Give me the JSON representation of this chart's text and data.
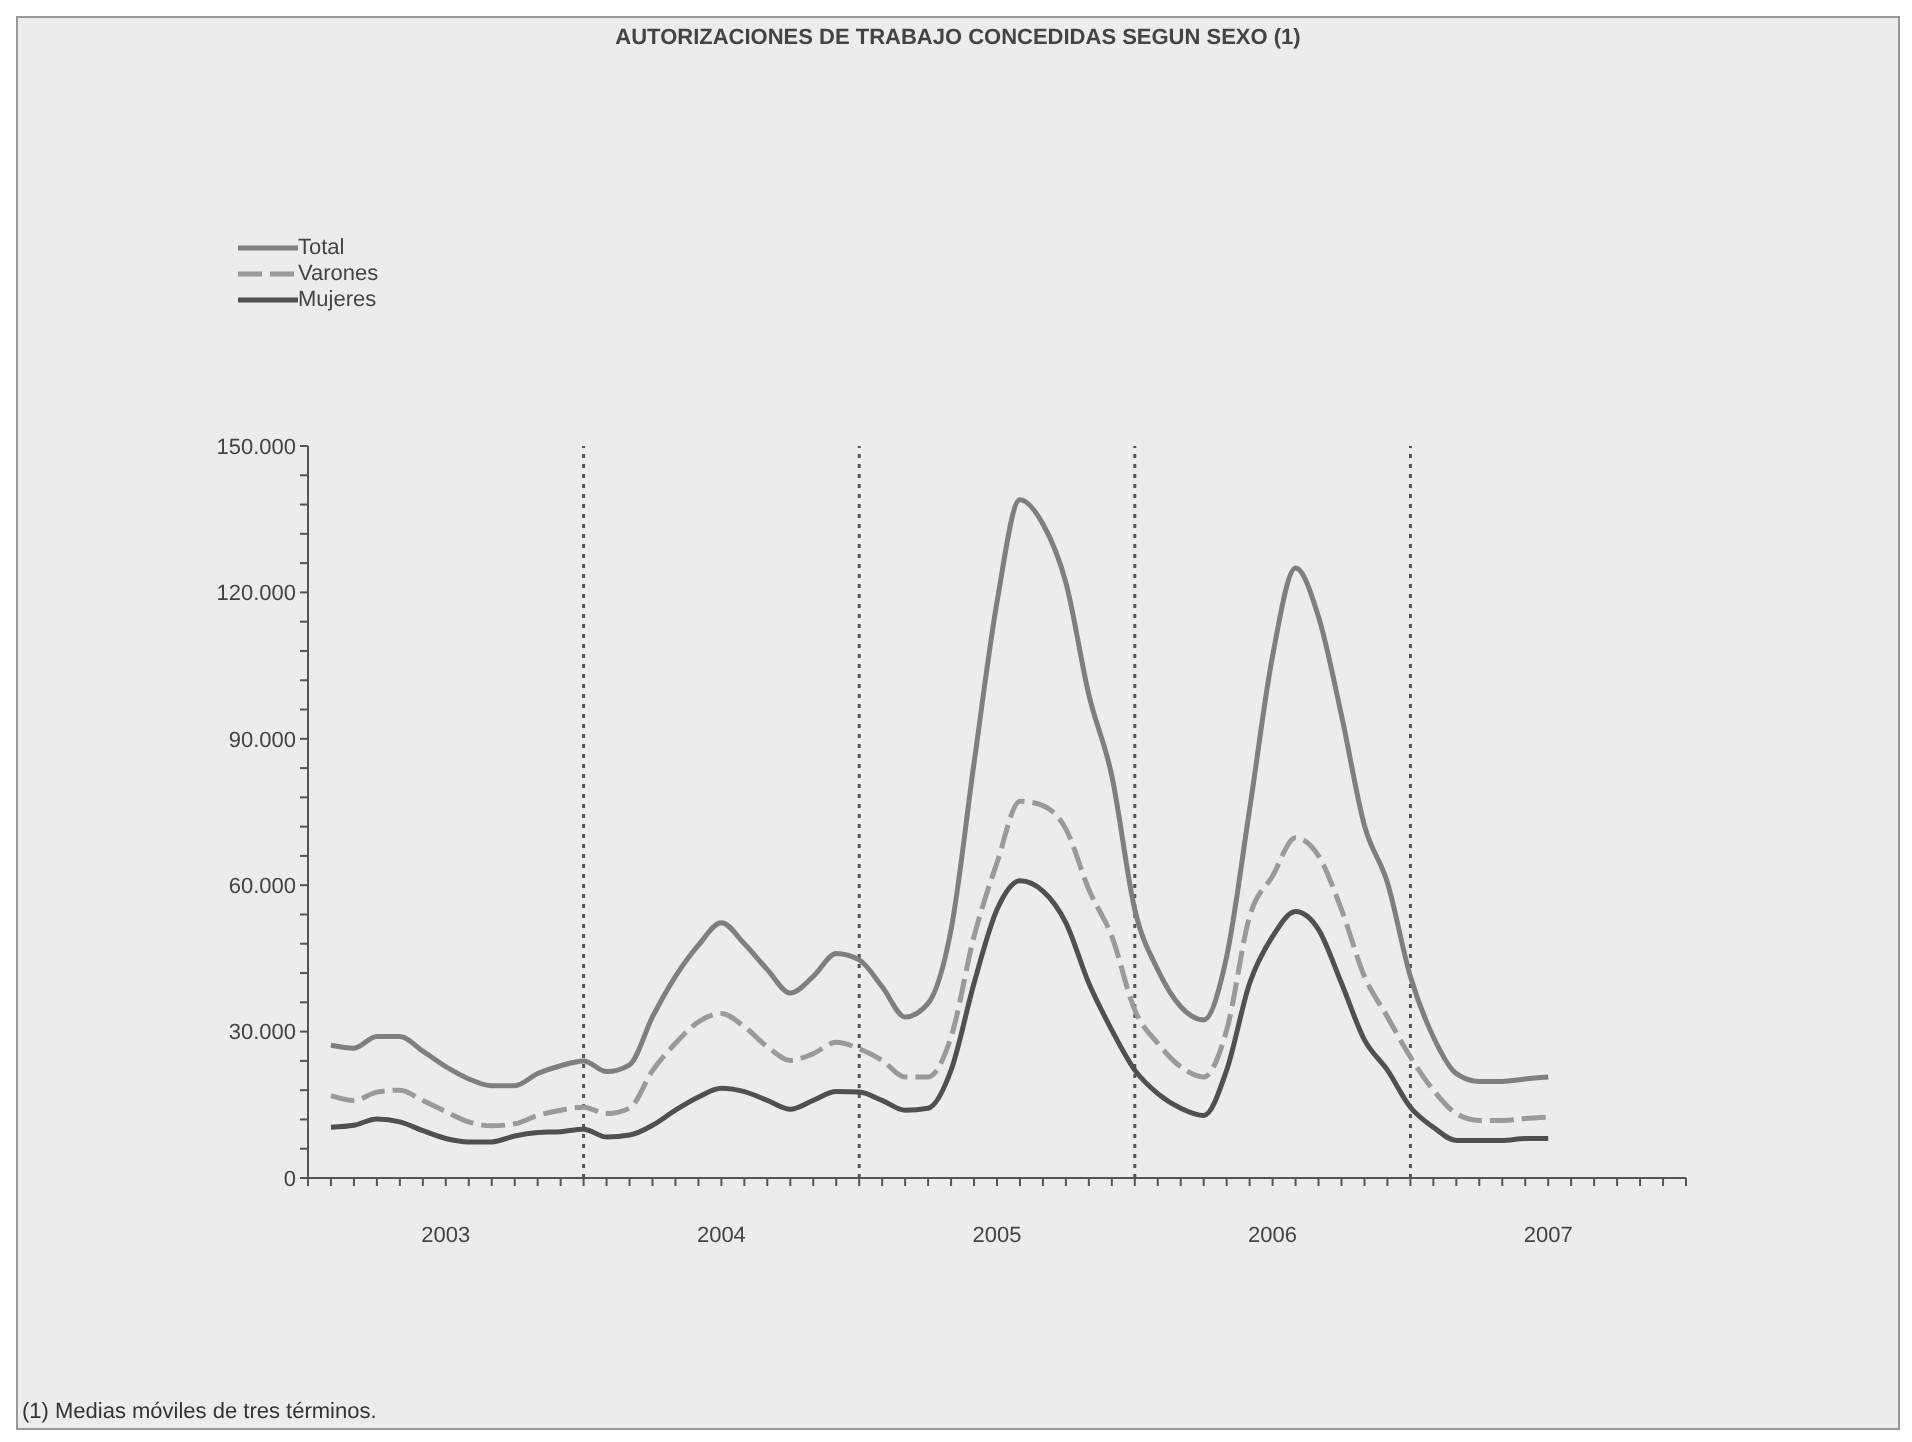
{
  "chart_data": {
    "type": "line",
    "title": "AUTORIZACIONES DE TRABAJO CONCEDIDAS SEGUN SEXO (1)",
    "annotations": [
      "(1) Medias móviles de tres términos."
    ],
    "x": [
      "2003-02",
      "2003-03",
      "2003-04",
      "2003-05",
      "2003-06",
      "2003-07",
      "2003-08",
      "2003-09",
      "2003-10",
      "2003-11",
      "2003-12",
      "2004-01",
      "2004-02",
      "2004-03",
      "2004-04",
      "2004-05",
      "2004-06",
      "2004-07",
      "2004-08",
      "2004-09",
      "2004-10",
      "2004-11",
      "2004-12",
      "2005-01",
      "2005-02",
      "2005-03",
      "2005-04",
      "2005-05",
      "2005-06",
      "2005-07",
      "2005-08",
      "2005-09",
      "2005-10",
      "2005-11",
      "2005-12",
      "2006-01",
      "2006-02",
      "2006-03",
      "2006-04",
      "2006-05",
      "2006-06",
      "2006-07",
      "2006-08",
      "2006-09",
      "2006-10",
      "2006-11",
      "2006-12",
      "2007-01",
      "2007-02",
      "2007-03",
      "2007-04",
      "2007-05",
      "2007-06",
      "2007-07"
    ],
    "series": [
      {
        "name": "Total",
        "color": "#7f7f7f",
        "values": [
          27200,
          26600,
          29000,
          29000,
          26000,
          22800,
          20300,
          18900,
          18900,
          21400,
          23000,
          24000,
          21800,
          23200,
          33000,
          41300,
          47700,
          52300,
          48000,
          42700,
          37900,
          41300,
          46000,
          44700,
          39200,
          33000,
          35800,
          50900,
          85000,
          118000,
          139000,
          134000,
          122000,
          99000,
          82400,
          55000,
          42700,
          35100,
          32400,
          45400,
          75600,
          107000,
          125000,
          115000,
          94800,
          72200,
          60500,
          41300,
          28900,
          21400,
          19800,
          19800,
          20300,
          20700
        ]
      },
      {
        "name": "Varones",
        "color": "#9a9a9a",
        "line_style": "dashed",
        "values": [
          16900,
          15900,
          17600,
          18000,
          15900,
          13600,
          11500,
          10700,
          11100,
          12800,
          13900,
          14500,
          13200,
          14300,
          22000,
          27600,
          32000,
          33700,
          31000,
          26900,
          24100,
          25500,
          27800,
          26500,
          24100,
          20700,
          20700,
          28900,
          49500,
          64600,
          77200,
          76300,
          71500,
          59100,
          49500,
          34400,
          27600,
          22800,
          20700,
          30300,
          53600,
          61900,
          69700,
          66000,
          55000,
          41300,
          33000,
          24800,
          18000,
          13200,
          11800,
          11800,
          12200,
          12500
        ]
      },
      {
        "name": "Mujeres",
        "color": "#505050",
        "values": [
          10400,
          10800,
          12100,
          11500,
          9700,
          8100,
          7400,
          7400,
          8600,
          9300,
          9500,
          10000,
          8400,
          8800,
          10800,
          13900,
          16600,
          18400,
          17700,
          15900,
          14100,
          15900,
          17700,
          17600,
          15900,
          13900,
          14300,
          22100,
          39900,
          55000,
          60900,
          58800,
          52300,
          39900,
          30300,
          22100,
          17300,
          14300,
          12800,
          22100,
          39900,
          49500,
          54600,
          50900,
          39900,
          28300,
          22100,
          14500,
          10400,
          7700,
          7700,
          7700,
          8100,
          8100
        ]
      }
    ],
    "xlim": [
      "2003-01",
      "2008-01"
    ],
    "xticks": [
      {
        "value": "2003-01",
        "label": null
      },
      {
        "value": "2003-02",
        "label": null
      },
      {
        "value": "2003-03",
        "label": null
      },
      {
        "value": "2003-04",
        "label": null
      },
      {
        "value": "2003-05",
        "label": null
      },
      {
        "value": "2003-06",
        "label": null
      },
      {
        "value": "2003-07",
        "label": "2003"
      },
      {
        "value": "2003-08",
        "label": null
      },
      {
        "value": "2003-09",
        "label": null
      },
      {
        "value": "2003-10",
        "label": null
      },
      {
        "value": "2003-11",
        "label": null
      },
      {
        "value": "2003-12",
        "label": null
      },
      {
        "value": "2004-01",
        "label": null
      },
      {
        "value": "2004-02",
        "label": null
      },
      {
        "value": "2004-03",
        "label": null
      },
      {
        "value": "2004-04",
        "label": null
      },
      {
        "value": "2004-05",
        "label": null
      },
      {
        "value": "2004-06",
        "label": null
      },
      {
        "value": "2004-07",
        "label": "2004"
      },
      {
        "value": "2004-08",
        "label": null
      },
      {
        "value": "2004-09",
        "label": null
      },
      {
        "value": "2004-10",
        "label": null
      },
      {
        "value": "2004-11",
        "label": null
      },
      {
        "value": "2004-12",
        "label": null
      },
      {
        "value": "2005-01",
        "label": null
      },
      {
        "value": "2005-02",
        "label": null
      },
      {
        "value": "2005-03",
        "label": null
      },
      {
        "value": "2005-04",
        "label": null
      },
      {
        "value": "2005-05",
        "label": null
      },
      {
        "value": "2005-06",
        "label": null
      },
      {
        "value": "2005-07",
        "label": "2005"
      },
      {
        "value": "2005-08",
        "label": null
      },
      {
        "value": "2005-09",
        "label": null
      },
      {
        "value": "2005-10",
        "label": null
      },
      {
        "value": "2005-11",
        "label": null
      },
      {
        "value": "2005-12",
        "label": null
      },
      {
        "value": "2006-01",
        "label": null
      },
      {
        "value": "2006-02",
        "label": null
      },
      {
        "value": "2006-03",
        "label": null
      },
      {
        "value": "2006-04",
        "label": null
      },
      {
        "value": "2006-05",
        "label": null
      },
      {
        "value": "2006-06",
        "label": null
      },
      {
        "value": "2006-07",
        "label": "2006"
      },
      {
        "value": "2006-08",
        "label": null
      },
      {
        "value": "2006-09",
        "label": null
      },
      {
        "value": "2006-10",
        "label": null
      },
      {
        "value": "2006-11",
        "label": null
      },
      {
        "value": "2006-12",
        "label": null
      },
      {
        "value": "2007-01",
        "label": null
      },
      {
        "value": "2007-02",
        "label": null
      },
      {
        "value": "2007-03",
        "label": null
      },
      {
        "value": "2007-04",
        "label": null
      },
      {
        "value": "2007-05",
        "label": null
      },
      {
        "value": "2007-06",
        "label": null
      },
      {
        "value": "2007-07",
        "label": "2007"
      },
      {
        "value": "2007-08",
        "label": null
      },
      {
        "value": "2007-09",
        "label": null
      },
      {
        "value": "2007-10",
        "label": null
      },
      {
        "value": "2007-11",
        "label": null
      },
      {
        "value": "2007-12",
        "label": null
      },
      {
        "value": "2008-01",
        "label": null
      }
    ],
    "ylim": [
      0,
      150000
    ],
    "yticks": [
      {
        "value": 0,
        "label": "0"
      },
      {
        "value": 6000,
        "label": null
      },
      {
        "value": 12000,
        "label": null
      },
      {
        "value": 18000,
        "label": null
      },
      {
        "value": 24000,
        "label": null
      },
      {
        "value": 30000,
        "label": "30.000"
      },
      {
        "value": 36000,
        "label": null
      },
      {
        "value": 42000,
        "label": null
      },
      {
        "value": 48000,
        "label": null
      },
      {
        "value": 54000,
        "label": null
      },
      {
        "value": 60000,
        "label": "60.000"
      },
      {
        "value": 66000,
        "label": null
      },
      {
        "value": 72000,
        "label": null
      },
      {
        "value": 78000,
        "label": null
      },
      {
        "value": 84000,
        "label": null
      },
      {
        "value": 90000,
        "label": "90.000"
      },
      {
        "value": 96000,
        "label": null
      },
      {
        "value": 102000,
        "label": null
      },
      {
        "value": 108000,
        "label": null
      },
      {
        "value": 114000,
        "label": null
      },
      {
        "value": 120000,
        "label": "120.000"
      },
      {
        "value": 126000,
        "label": null
      },
      {
        "value": 132000,
        "label": null
      },
      {
        "value": 138000,
        "label": null
      },
      {
        "value": 144000,
        "label": null
      },
      {
        "value": 150000,
        "label": "150.000"
      }
    ],
    "ref_lines": [
      {
        "axis": "x",
        "value": "2004-01",
        "label": null,
        "color": "#555555",
        "line_style": "dotted"
      },
      {
        "axis": "x",
        "value": "2005-01",
        "label": null,
        "color": "#555555",
        "line_style": "dotted"
      },
      {
        "axis": "x",
        "value": "2006-01",
        "label": null,
        "color": "#555555",
        "line_style": "dotted"
      },
      {
        "axis": "x",
        "value": "2007-01",
        "label": null,
        "color": "#555555",
        "line_style": "dotted"
      }
    ],
    "grid": false,
    "legend": "top left",
    "marker": "none",
    "line_style": "solid"
  }
}
